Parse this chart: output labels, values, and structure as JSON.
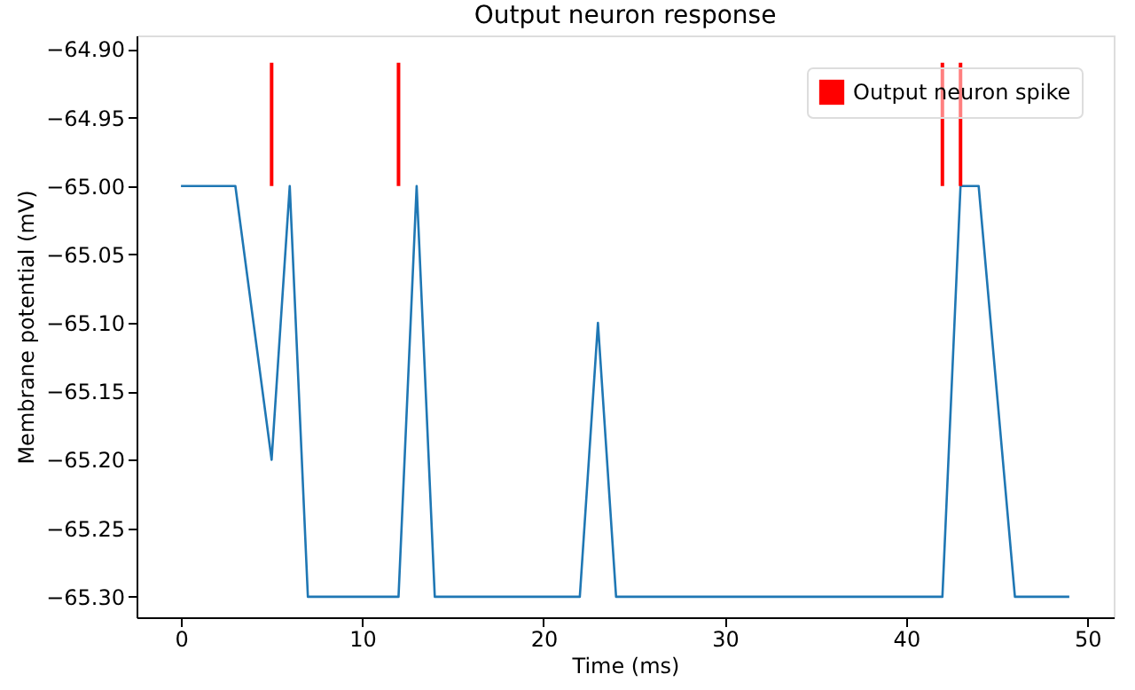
{
  "chart_data": {
    "type": "line",
    "title": "Output neuron response",
    "xlabel": "Time (ms)",
    "ylabel": "Membrane potential (mV)",
    "x": [
      0,
      1,
      2,
      3,
      4,
      5,
      6,
      7,
      8,
      9,
      10,
      11,
      12,
      13,
      14,
      15,
      16,
      17,
      18,
      19,
      20,
      21,
      22,
      23,
      24,
      25,
      26,
      27,
      28,
      29,
      30,
      31,
      32,
      33,
      34,
      35,
      36,
      37,
      38,
      39,
      40,
      41,
      42,
      43,
      44,
      45,
      46,
      47,
      48,
      49
    ],
    "series": [
      {
        "color": "#1f77b4",
        "values": [
          -65.0,
          -65.0,
          -65.0,
          -65.0,
          -65.1,
          -65.2,
          -65.0,
          -65.3,
          -65.3,
          -65.3,
          -65.3,
          -65.3,
          -65.3,
          -65.0,
          -65.3,
          -65.3,
          -65.3,
          -65.3,
          -65.3,
          -65.3,
          -65.3,
          -65.3,
          -65.3,
          -65.1,
          -65.3,
          -65.3,
          -65.3,
          -65.3,
          -65.3,
          -65.3,
          -65.3,
          -65.3,
          -65.3,
          -65.3,
          -65.3,
          -65.3,
          -65.3,
          -65.3,
          -65.3,
          -65.3,
          -65.3,
          -65.3,
          -65.3,
          -65.0,
          -65.0,
          -65.15,
          -65.3,
          -65.3,
          -65.3,
          -65.3
        ]
      },
      {
        "type": "bar",
        "name": "Output neuron spike",
        "color": "#ff0000",
        "x": [
          5,
          12,
          42,
          43
        ],
        "base": [
          -65.0,
          -65.0,
          -65.0,
          -65.0
        ],
        "values": [
          0.09,
          0.09,
          0.09,
          0.09
        ]
      }
    ],
    "xlim": [
      -2.45,
      51.45
    ],
    "xticks": [
      0,
      10,
      20,
      30,
      40,
      50
    ],
    "ylim": [
      -65.315,
      -64.89
    ],
    "yticks": [
      {
        "value": -65.3,
        "label": "−65.30"
      },
      {
        "value": -65.25,
        "label": "−65.25"
      },
      {
        "value": -65.2,
        "label": "−65.20"
      },
      {
        "value": -65.15,
        "label": "−65.15"
      },
      {
        "value": -65.1,
        "label": "−65.10"
      },
      {
        "value": -65.05,
        "label": "−65.05"
      },
      {
        "value": -65.0,
        "label": "−65.00"
      },
      {
        "value": -64.95,
        "label": "−64.95"
      },
      {
        "value": -64.9,
        "label": "−64.90"
      }
    ],
    "grid": false,
    "legend": "top right",
    "line_style": "solid",
    "marker": "none"
  }
}
